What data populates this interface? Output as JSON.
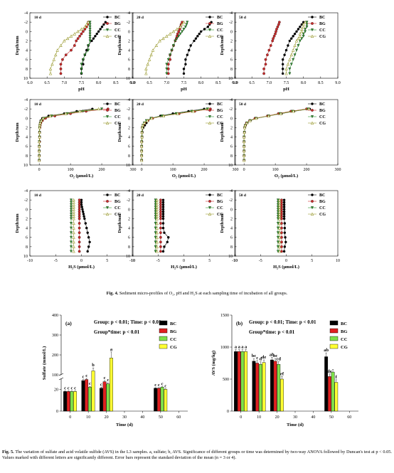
{
  "figure4": {
    "caption_label": "Fig. 4.",
    "caption_text": "Sediment micro-profiles of O₂, pH and H₂S at each sampling time of incubation of all groups.",
    "depth_label": "Depth/mm",
    "legend": [
      "BC",
      "BG",
      "CC",
      "CG"
    ],
    "depths": [
      -2,
      -1.5,
      -1,
      -0.5,
      0,
      0.5,
      1,
      1.5,
      2,
      3,
      4,
      5,
      6,
      7,
      8,
      9
    ],
    "colors": {
      "BC": "#000000",
      "BG": "#cc2a2a",
      "CC": "#2e9a2e",
      "CG": "#9a9a30"
    },
    "panels": [
      {
        "row": "pH",
        "time": "10 d",
        "xlabel": "pH",
        "xticks": [
          6.0,
          6.5,
          7.0,
          7.5,
          8.0,
          8.5,
          9.0
        ],
        "xlim": [
          6.0,
          9.0
        ],
        "series": {
          "BC": [
            8.2,
            8.15,
            8.1,
            8.05,
            8.0,
            7.95,
            7.9,
            7.85,
            7.8,
            7.7,
            7.65,
            7.6,
            7.55,
            7.55,
            7.5,
            7.5
          ],
          "BG": [
            7.7,
            7.68,
            7.65,
            7.6,
            7.55,
            7.5,
            7.45,
            7.4,
            7.35,
            7.3,
            7.2,
            7.05,
            6.95,
            6.9,
            6.9,
            6.9
          ],
          "CC": [
            7.75,
            7.75,
            7.75,
            7.75,
            7.75,
            7.75,
            7.75,
            7.75,
            7.75,
            7.7,
            7.7,
            7.6,
            7.55,
            7.5,
            7.5,
            7.5
          ],
          "CG": [
            7.7,
            7.65,
            7.6,
            7.5,
            7.4,
            7.3,
            7.2,
            7.1,
            7.0,
            6.9,
            6.8,
            6.75,
            6.7,
            6.65,
            6.6,
            6.6
          ]
        }
      },
      {
        "row": "pH",
        "time": "20 d",
        "xlabel": "pH",
        "xticks": [
          6.0,
          6.5,
          7.0,
          7.5,
          8.0,
          8.5,
          9.0
        ],
        "xlim": [
          6.0,
          9.0
        ],
        "series": {
          "BC": [
            8.3,
            8.25,
            8.2,
            8.1,
            8.0,
            7.95,
            7.9,
            7.85,
            7.8,
            7.7,
            7.65,
            7.6,
            7.55,
            7.55,
            7.5,
            7.5
          ],
          "BG": [
            7.45,
            7.42,
            7.4,
            7.38,
            7.35,
            7.32,
            7.3,
            7.28,
            7.25,
            7.2,
            7.15,
            7.1,
            7.1,
            7.05,
            7.05,
            7.05
          ],
          "CC": [
            7.6,
            7.58,
            7.55,
            7.5,
            7.45,
            7.4,
            7.35,
            7.3,
            7.25,
            7.2,
            7.15,
            7.1,
            7.05,
            7.0,
            7.0,
            7.0
          ],
          "CG": [
            7.5,
            7.45,
            7.4,
            7.3,
            7.2,
            7.1,
            7.0,
            6.9,
            6.8,
            6.7,
            6.6,
            6.55,
            6.5,
            6.45,
            6.4,
            6.4
          ]
        }
      },
      {
        "row": "pH",
        "time": "50 d",
        "xlabel": "pH",
        "xticks": [
          6.0,
          6.5,
          7.0,
          7.5,
          8.0,
          8.5,
          9.0
        ],
        "xlim": [
          6.0,
          9.0
        ],
        "series": {
          "BC": [
            8.0,
            7.95,
            7.9,
            7.85,
            7.8,
            7.75,
            7.7,
            7.65,
            7.6,
            7.55,
            7.5,
            7.45,
            7.4,
            7.4,
            7.4,
            7.4
          ],
          "BG": [
            7.3,
            7.28,
            7.25,
            7.22,
            7.2,
            7.18,
            7.15,
            7.12,
            7.1,
            7.05,
            7.0,
            6.95,
            6.9,
            6.9,
            6.85,
            6.85
          ],
          "CC": [
            8.1,
            8.1,
            8.1,
            8.05,
            8.05,
            8.0,
            8.0,
            7.95,
            7.9,
            7.85,
            7.8,
            7.75,
            7.7,
            7.65,
            7.6,
            7.6
          ],
          "CG": [
            8.05,
            8.0,
            8.0,
            7.95,
            7.95,
            7.9,
            7.9,
            7.85,
            7.8,
            7.75,
            7.7,
            7.65,
            7.6,
            7.55,
            7.5,
            7.5
          ]
        }
      },
      {
        "row": "O2",
        "time": "10 d",
        "xlabel": "O₂ (μmol/L)",
        "xticks": [
          0,
          100,
          200,
          300
        ],
        "xlim": [
          -30,
          300
        ],
        "series": {
          "BC": [
            170,
            120,
            80,
            30,
            10,
            5,
            3,
            2,
            1,
            1,
            1,
            1,
            0,
            0,
            0,
            0
          ],
          "BG": [
            220,
            150,
            100,
            50,
            20,
            10,
            5,
            3,
            2,
            1,
            1,
            1,
            0,
            0,
            0,
            0
          ],
          "CC": [
            200,
            140,
            90,
            40,
            15,
            8,
            4,
            2,
            1,
            1,
            1,
            0,
            0,
            0,
            0,
            0
          ],
          "CG": [
            190,
            130,
            85,
            35,
            12,
            6,
            3,
            2,
            1,
            1,
            1,
            0,
            0,
            0,
            0,
            0
          ]
        }
      },
      {
        "row": "O2",
        "time": "20 d",
        "xlabel": "O₂ (μmol/L)",
        "xticks": [
          0,
          100,
          200,
          300
        ],
        "xlim": [
          -30,
          300
        ],
        "series": {
          "BC": [
            200,
            150,
            100,
            60,
            30,
            20,
            15,
            10,
            5,
            2,
            1,
            1,
            0,
            0,
            0,
            0
          ],
          "BG": [
            220,
            170,
            120,
            70,
            35,
            20,
            10,
            5,
            2,
            1,
            1,
            0,
            0,
            0,
            0,
            0
          ],
          "CC": [
            210,
            160,
            110,
            65,
            30,
            15,
            8,
            4,
            2,
            1,
            1,
            0,
            0,
            0,
            0,
            0
          ],
          "CG": [
            215,
            165,
            115,
            70,
            32,
            18,
            9,
            4,
            2,
            1,
            1,
            0,
            0,
            0,
            0,
            0
          ]
        }
      },
      {
        "row": "O2",
        "time": "50 d",
        "xlabel": "O₂ (μmol/L)",
        "xticks": [
          0,
          100,
          200,
          300
        ],
        "xlim": [
          -30,
          300
        ],
        "series": {
          "BC": [
            210,
            160,
            120,
            80,
            40,
            20,
            10,
            5,
            2,
            1,
            0,
            0,
            0,
            0,
            0,
            0
          ],
          "BG": [
            200,
            150,
            110,
            75,
            35,
            18,
            8,
            4,
            2,
            1,
            0,
            0,
            0,
            0,
            0,
            0
          ],
          "CC": [
            205,
            155,
            115,
            78,
            38,
            19,
            9,
            4,
            2,
            1,
            0,
            0,
            0,
            0,
            0,
            0
          ],
          "CG": [
            208,
            158,
            118,
            79,
            39,
            19,
            9,
            4,
            2,
            1,
            0,
            0,
            0,
            0,
            0,
            0
          ]
        }
      },
      {
        "row": "H2S",
        "time": "10 d",
        "xlabel": "H₂S (μmol/L)",
        "xticks": [
          -10,
          -5,
          0,
          5,
          10
        ],
        "xlim": [
          -10,
          10
        ],
        "series": {
          "BC": [
            0,
            0,
            0,
            0.1,
            0.2,
            0.3,
            0.4,
            0.5,
            0.6,
            0.8,
            1.0,
            1.2,
            1.4,
            1.6,
            1.4,
            1.2
          ],
          "BG": [
            -0.4,
            -0.4,
            -0.4,
            -0.4,
            -0.4,
            -0.4,
            -0.4,
            -0.4,
            -0.4,
            -0.4,
            -0.4,
            -0.4,
            -0.4,
            -0.4,
            -0.4,
            -0.4
          ],
          "CC": [
            -2.0,
            -2.0,
            -2.0,
            -2.0,
            -2.0,
            -2.0,
            -2.0,
            -2.0,
            -2.0,
            -2.0,
            -2.0,
            -2.0,
            -2.0,
            -2.0,
            -2.0,
            -2.0
          ],
          "CG": [
            -1.5,
            -1.5,
            -1.5,
            -1.5,
            -1.5,
            -1.5,
            -1.5,
            -1.5,
            -1.5,
            -1.5,
            -1.5,
            -1.5,
            -1.5,
            -1.5,
            -1.5,
            -1.5
          ]
        }
      },
      {
        "row": "H2S",
        "time": "20 d",
        "xlabel": "H₂S (μmol/L)",
        "xticks": [
          -10,
          -5,
          0,
          5,
          10
        ],
        "xlim": [
          -10,
          10
        ],
        "series": {
          "BC": [
            -4.0,
            -4.0,
            -4.0,
            -4.0,
            -4.0,
            -4.0,
            -4.0,
            -4.0,
            -4.0,
            -4.0,
            -4.0,
            -3.8,
            -3.0,
            -3.2,
            -3.8,
            -4.0
          ],
          "BG": [
            -4.5,
            -4.5,
            -4.5,
            -4.5,
            -4.5,
            -4.5,
            -4.5,
            -4.5,
            -4.5,
            -4.5,
            -4.5,
            -4.5,
            -4.5,
            -4.5,
            -4.5,
            -4.5
          ],
          "CC": [
            -5.5,
            -5.5,
            -5.5,
            -5.5,
            -5.5,
            -5.5,
            -5.5,
            -5.5,
            -5.5,
            -5.5,
            -5.5,
            -5.5,
            -5.5,
            -5.5,
            -5.5,
            -5.5
          ],
          "CG": [
            -5.2,
            -5.2,
            -5.2,
            -5.2,
            -5.2,
            -5.2,
            -5.2,
            -5.2,
            -5.2,
            -5.2,
            -5.2,
            -5.2,
            -5.2,
            -5.2,
            -5.2,
            -5.2
          ]
        }
      },
      {
        "row": "H2S",
        "time": "50 d",
        "xlabel": "H₂S (μmol/L)",
        "xticks": [
          -10,
          -5,
          0,
          5,
          10
        ],
        "xlim": [
          -10,
          10
        ],
        "series": {
          "BC": [
            -0.4,
            -0.4,
            -0.4,
            -0.4,
            -0.4,
            -0.4,
            -0.4,
            -0.4,
            -0.4,
            -0.3,
            -0.3,
            -0.3,
            -0.2,
            -0.1,
            -0.3,
            -0.4
          ],
          "BG": [
            -0.9,
            -0.9,
            -0.9,
            -0.9,
            -0.9,
            -0.9,
            -0.9,
            -0.9,
            -0.9,
            -0.9,
            -0.9,
            -0.9,
            -0.9,
            -0.9,
            -0.9,
            -0.9
          ],
          "CC": [
            -1.6,
            -1.6,
            -1.6,
            -1.6,
            -1.6,
            -1.6,
            -1.6,
            -1.6,
            -1.6,
            -1.6,
            -1.6,
            -1.6,
            -1.6,
            -1.6,
            -1.6,
            -1.6
          ],
          "CG": [
            -1.3,
            -1.3,
            -1.3,
            -1.3,
            -1.3,
            -1.3,
            -1.3,
            -1.3,
            -1.3,
            -1.3,
            -1.3,
            -1.3,
            -1.3,
            -1.3,
            -1.3,
            -1.3
          ]
        }
      }
    ]
  },
  "figure5": {
    "caption_label": "Fig. 5.",
    "caption_text": "The variation of sulfate and acid volatile sulfide (AVS) in the L3 samples. a, sulfate; b, AVS. Significance of different groups or time was determined by two-way ANOVA followed by Duncan's test at p < 0.05. Values marked with different letters are significantly different. Error bars represent the standard deviation of the mean (n = 3 or 4).",
    "legend": [
      "BC",
      "BG",
      "CC",
      "CG"
    ],
    "colors": {
      "BC": "#000000",
      "BG": "#e02020",
      "CC": "#7ee04a",
      "CG": "#ffff33"
    },
    "panels": [
      {
        "label": "(a)",
        "ylabel": "Sulfate (mmol/L)",
        "xlabel": "Time (d)",
        "stats_line1": "Group: p < 0.01; Time: p < 0.01",
        "stats_line2": "Group*time: p < 0.01",
        "xticks": [
          0,
          10,
          20,
          30,
          40,
          50,
          60
        ],
        "yticks_low": [
          "0",
          "20"
        ],
        "yticks_high": [
          "100",
          "200",
          "300",
          "400"
        ],
        "groups": [
          {
            "time": 0,
            "values": [
              18,
              18,
              18,
              18
            ],
            "errors": [
              0.5,
              0.5,
              0.5,
              0.5
            ],
            "letters": [
              "c",
              "c",
              "c",
              "c"
            ]
          },
          {
            "time": 10,
            "values": [
              28,
              29,
              38,
              120
            ],
            "errors": [
              1,
              1,
              4,
              15
            ],
            "letters": [
              "c",
              "c",
              "c",
              "b"
            ]
          },
          {
            "time": 20,
            "values": [
              21,
              27,
              25,
              185
            ],
            "errors": [
              1,
              1,
              1,
              30
            ],
            "letters": [
              "c",
              "c",
              "c",
              "a"
            ]
          },
          {
            "time": 50,
            "values": [
              21,
              21,
              22,
              20
            ],
            "errors": [
              0.5,
              0.5,
              0.5,
              0.5
            ],
            "letters": [
              "c",
              "c",
              "c",
              "c"
            ]
          }
        ]
      },
      {
        "label": "(b)",
        "ylabel": "AVS (mg/kg)",
        "xlabel": "Time (d)",
        "stats_line1": "Group: p < 0.01; Time: p < 0.01",
        "stats_line2": "Group*time: p < 0.01",
        "xticks": [
          0,
          10,
          20,
          30,
          40,
          50,
          60
        ],
        "yticks": [
          "0",
          "500",
          "1000",
          "1500"
        ],
        "ylim": [
          0,
          1500
        ],
        "groups": [
          {
            "time": 0,
            "values": [
              930,
              930,
              930,
              930
            ],
            "errors": [
              30,
              30,
              30,
              30
            ],
            "letters": [
              "a",
              "a",
              "a",
              "a"
            ]
          },
          {
            "time": 10,
            "values": [
              780,
              750,
              730,
              760
            ],
            "errors": [
              40,
              40,
              40,
              40
            ],
            "letters": [
              "bc",
              "c",
              "d",
              "de"
            ]
          },
          {
            "time": 20,
            "values": [
              800,
              780,
              730,
              500
            ],
            "errors": [
              40,
              40,
              40,
              40
            ],
            "letters": [
              "ab",
              "bc",
              "cd",
              "ef"
            ]
          },
          {
            "time": 50,
            "values": [
              850,
              540,
              610,
              450
            ],
            "errors": [
              60,
              40,
              40,
              40
            ],
            "letters": [
              "ab",
              "de",
              "",
              "f"
            ]
          }
        ]
      }
    ]
  }
}
